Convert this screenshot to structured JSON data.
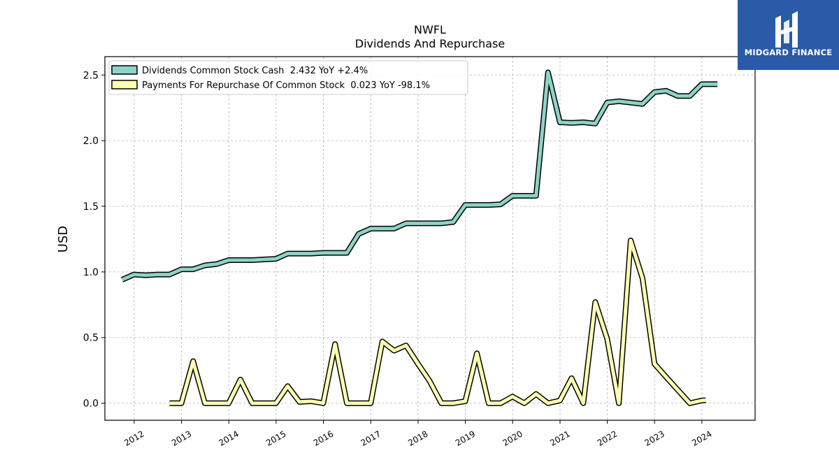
{
  "chart_data": {
    "type": "line",
    "title": "NWFL",
    "subtitle": "Dividends And Repurchase",
    "xlabel": "",
    "ylabel": "USD",
    "ylim": [
      -0.13,
      2.64
    ],
    "yticks": [
      0.0,
      0.5,
      1.0,
      1.5,
      2.0,
      2.5
    ],
    "ytick_labels": [
      "0.0",
      "0.5",
      "1.0",
      "1.5",
      "2.0",
      "2.5"
    ],
    "xlim": [
      "2011-05-20",
      "2025-02-15"
    ],
    "xticks": [
      "2012-01-01",
      "2013-01-01",
      "2014-01-01",
      "2015-01-01",
      "2016-01-01",
      "2017-01-01",
      "2018-01-01",
      "2019-01-01",
      "2020-01-01",
      "2021-01-01",
      "2022-01-01",
      "2023-01-01",
      "2024-01-01"
    ],
    "xtick_labels": [
      "2012",
      "2013",
      "2014",
      "2015",
      "2016",
      "2017",
      "2018",
      "2019",
      "2020",
      "2021",
      "2022",
      "2023",
      "2024"
    ],
    "grid": true,
    "legend_position": "upper-left",
    "series": [
      {
        "name": "Dividends Common Stock Cash  2.432 YoY +2.4%",
        "color": "#8dd3c7",
        "x": [
          "2011-09-30",
          "2011-12-31",
          "2012-03-31",
          "2012-06-30",
          "2012-09-30",
          "2012-12-31",
          "2013-03-31",
          "2013-06-30",
          "2013-09-30",
          "2013-12-31",
          "2014-03-31",
          "2014-06-30",
          "2014-09-30",
          "2014-12-31",
          "2015-03-31",
          "2015-06-30",
          "2015-09-30",
          "2015-12-31",
          "2016-03-31",
          "2016-06-30",
          "2016-09-30",
          "2016-12-31",
          "2017-03-31",
          "2017-06-30",
          "2017-09-30",
          "2017-12-31",
          "2018-03-31",
          "2018-06-30",
          "2018-09-30",
          "2018-12-31",
          "2019-03-31",
          "2019-06-30",
          "2019-09-30",
          "2019-12-31",
          "2020-03-31",
          "2020-06-30",
          "2020-09-30",
          "2020-12-31",
          "2021-03-31",
          "2021-06-30",
          "2021-09-30",
          "2021-12-31",
          "2022-03-31",
          "2022-06-30",
          "2022-09-30",
          "2022-12-31",
          "2023-03-31",
          "2023-06-30",
          "2023-09-30",
          "2023-12-31",
          "2024-03-31",
          "2024-04-30"
        ],
        "values": [
          0.94,
          0.98,
          0.975,
          0.98,
          0.98,
          1.02,
          1.02,
          1.05,
          1.06,
          1.09,
          1.09,
          1.09,
          1.095,
          1.1,
          1.14,
          1.14,
          1.14,
          1.145,
          1.145,
          1.145,
          1.29,
          1.33,
          1.33,
          1.33,
          1.37,
          1.37,
          1.37,
          1.37,
          1.38,
          1.51,
          1.51,
          1.51,
          1.515,
          1.58,
          1.58,
          1.58,
          2.52,
          2.14,
          2.135,
          2.14,
          2.13,
          2.29,
          2.3,
          2.29,
          2.28,
          2.37,
          2.38,
          2.34,
          2.34,
          2.43,
          2.43,
          2.43
        ]
      },
      {
        "name": "Payments For Repurchase Of Common Stock  0.023 YoY -98.1%",
        "color": "#ffffb3",
        "x": [
          "2012-09-30",
          "2012-12-31",
          "2013-03-31",
          "2013-06-30",
          "2013-09-30",
          "2013-12-31",
          "2014-03-31",
          "2014-06-30",
          "2014-09-30",
          "2014-12-31",
          "2015-03-31",
          "2015-06-30",
          "2015-09-30",
          "2015-12-31",
          "2016-03-31",
          "2016-06-30",
          "2016-09-30",
          "2016-12-31",
          "2017-03-31",
          "2017-06-30",
          "2017-09-30",
          "2017-12-31",
          "2018-03-31",
          "2018-06-30",
          "2018-09-30",
          "2018-12-31",
          "2019-03-31",
          "2019-06-30",
          "2019-09-30",
          "2019-12-31",
          "2020-03-31",
          "2020-06-30",
          "2020-09-30",
          "2020-12-31",
          "2021-03-31",
          "2021-06-30",
          "2021-09-30",
          "2021-12-31",
          "2022-03-31",
          "2022-06-30",
          "2022-09-30",
          "2022-12-31",
          "2023-03-31",
          "2023-06-30",
          "2023-09-30",
          "2023-12-31",
          "2024-01-31"
        ],
        "values": [
          0.0,
          0.0,
          0.32,
          0.0,
          0.0,
          0.0,
          0.18,
          0.0,
          0.0,
          0.0,
          0.13,
          0.01,
          0.015,
          0.0,
          0.45,
          0.0,
          0.0,
          0.0,
          0.47,
          0.4,
          0.44,
          0.3,
          0.17,
          0.0,
          0.0,
          0.015,
          0.38,
          0.0,
          0.0,
          0.05,
          0.0,
          0.07,
          0.0,
          0.02,
          0.19,
          0.0,
          0.77,
          0.49,
          0.0,
          1.24,
          0.95,
          0.3,
          0.2,
          0.1,
          0.0,
          0.02,
          0.023
        ]
      }
    ]
  },
  "brand": {
    "name": "MIDGARD FINANCE",
    "background": "#2a5aa8"
  }
}
